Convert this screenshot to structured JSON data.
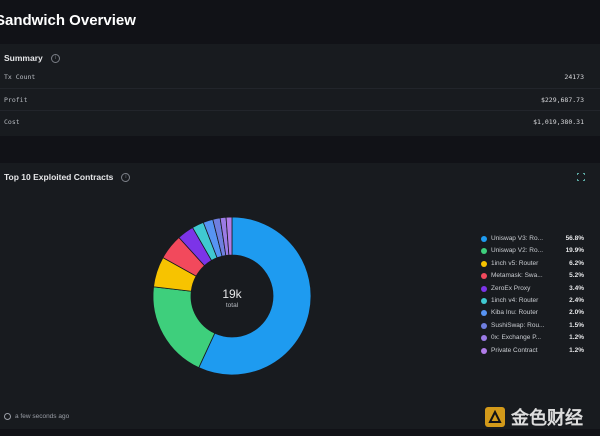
{
  "page_title": "Sandwich Overview",
  "summary": {
    "title": "Summary",
    "rows": [
      {
        "label": "Tx Count",
        "value": "24173"
      },
      {
        "label": "Profit",
        "value": "$229,687.73"
      },
      {
        "label": "Cost",
        "value": "$1,019,380.31"
      }
    ]
  },
  "contracts": {
    "title": "Top 10 Exploited Contracts",
    "center_value": "19k",
    "center_label": "total"
  },
  "chart_data": {
    "type": "pie",
    "categories": [
      "Uniswap V3: Ro...",
      "Uniswap V2: Ro...",
      "1inch v5: Router",
      "Metamask: Swa...",
      "ZeroEx Proxy",
      "1inch v4: Router",
      "Kiba Inu: Router",
      "SushiSwap: Rou...",
      "0x: Exchange P...",
      "Private Contract"
    ],
    "values": [
      56.8,
      19.9,
      6.2,
      5.2,
      3.4,
      2.4,
      2.0,
      1.5,
      1.2,
      1.2
    ],
    "value_labels": [
      "56.8%",
      "19.9%",
      "6.2%",
      "5.2%",
      "3.4%",
      "2.4%",
      "2.0%",
      "1.5%",
      "1.2%",
      "1.2%"
    ],
    "colors": [
      "#1e9bf0",
      "#3ecf7c",
      "#f7c300",
      "#f2495c",
      "#7c34e8",
      "#40c9d1",
      "#5794f2",
      "#6f7fe0",
      "#9b7be6",
      "#b07ce8"
    ],
    "legend_position": "right"
  },
  "footer": {
    "updated": "a few seconds ago"
  },
  "watermark": {
    "text": "金色财经"
  },
  "icons": {
    "info": "info-icon",
    "expand": "expand-icon",
    "clock": "clock-icon"
  }
}
